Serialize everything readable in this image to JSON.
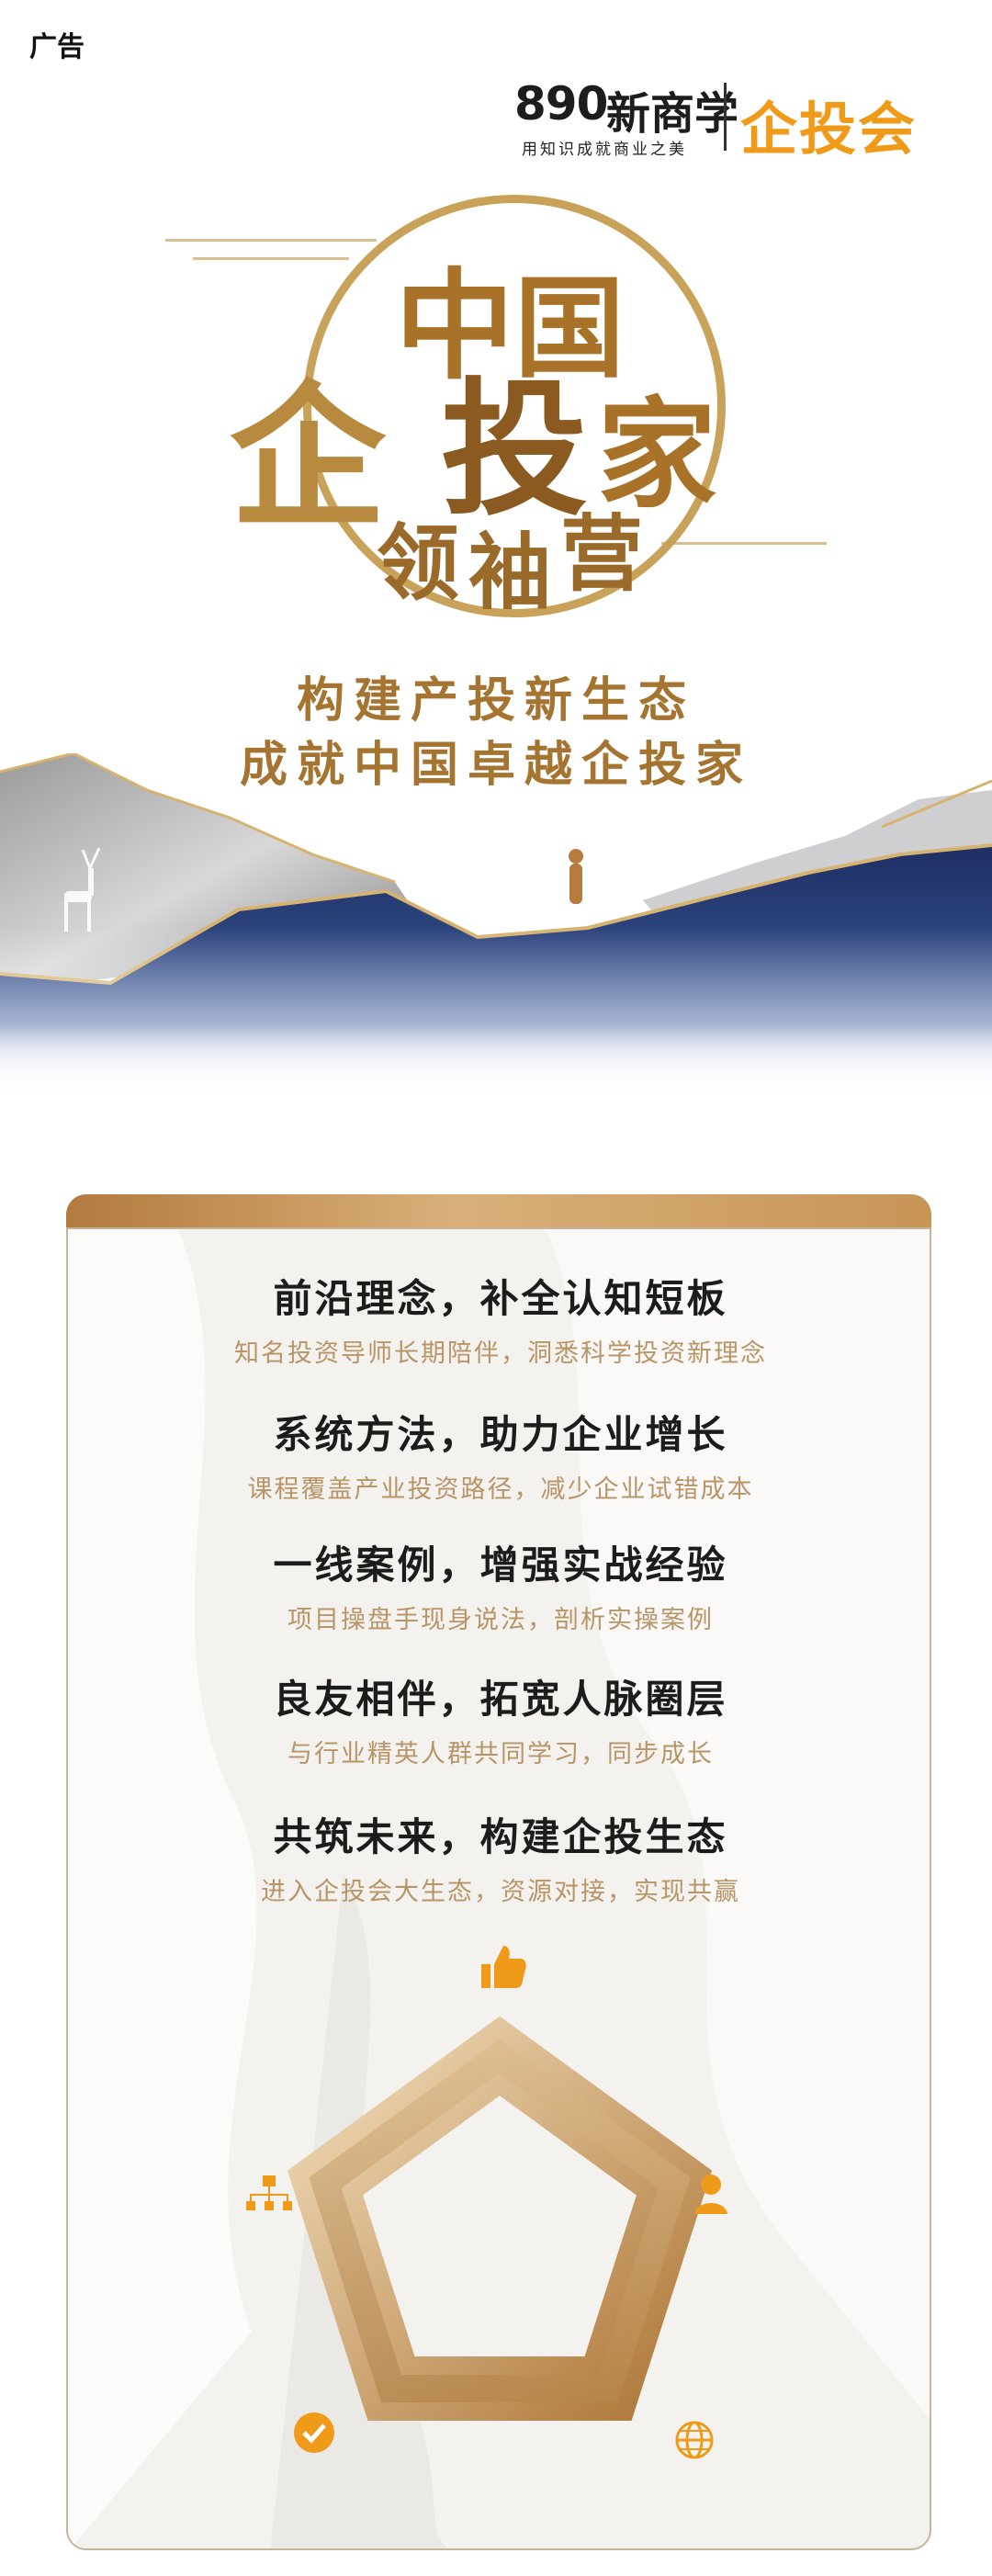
{
  "ad_label": "广告",
  "logo": {
    "brand_number": "890",
    "brand_cn": "新商学",
    "slogan": "用知识成就商业之美",
    "partner": "企投会"
  },
  "emblem": {
    "chars": [
      "中",
      "国",
      "企",
      "投",
      "家",
      "领",
      "袖",
      "营"
    ]
  },
  "taglines": [
    "构建产投新生态",
    "成就中国卓越企投家"
  ],
  "features": [
    {
      "title": "前沿理念，补全认知短板",
      "subtitle": "知名投资导师长期陪伴，洞悉科学投资新理念"
    },
    {
      "title": "系统方法，助力企业增长",
      "subtitle": "课程覆盖产业投资路径，减少企业试错成本"
    },
    {
      "title": "一线案例，增强实战经验",
      "subtitle": "项目操盘手现身说法，剖析实操案例"
    },
    {
      "title": "良友相伴，拓宽人脉圈层",
      "subtitle": "与行业精英人群共同学习，同步成长"
    },
    {
      "title": "共筑未来，构建企投生态",
      "subtitle": "进入企投会大生态，资源对接，实现共赢"
    }
  ],
  "pentagon_icons": [
    "thumbs-up-icon",
    "person-icon",
    "globe-icon",
    "checkmark-icon",
    "org-chart-icon"
  ],
  "colors": {
    "accent_orange": "#f09a1a",
    "gold": "#b88a40",
    "navy": "#2a3f7a"
  }
}
